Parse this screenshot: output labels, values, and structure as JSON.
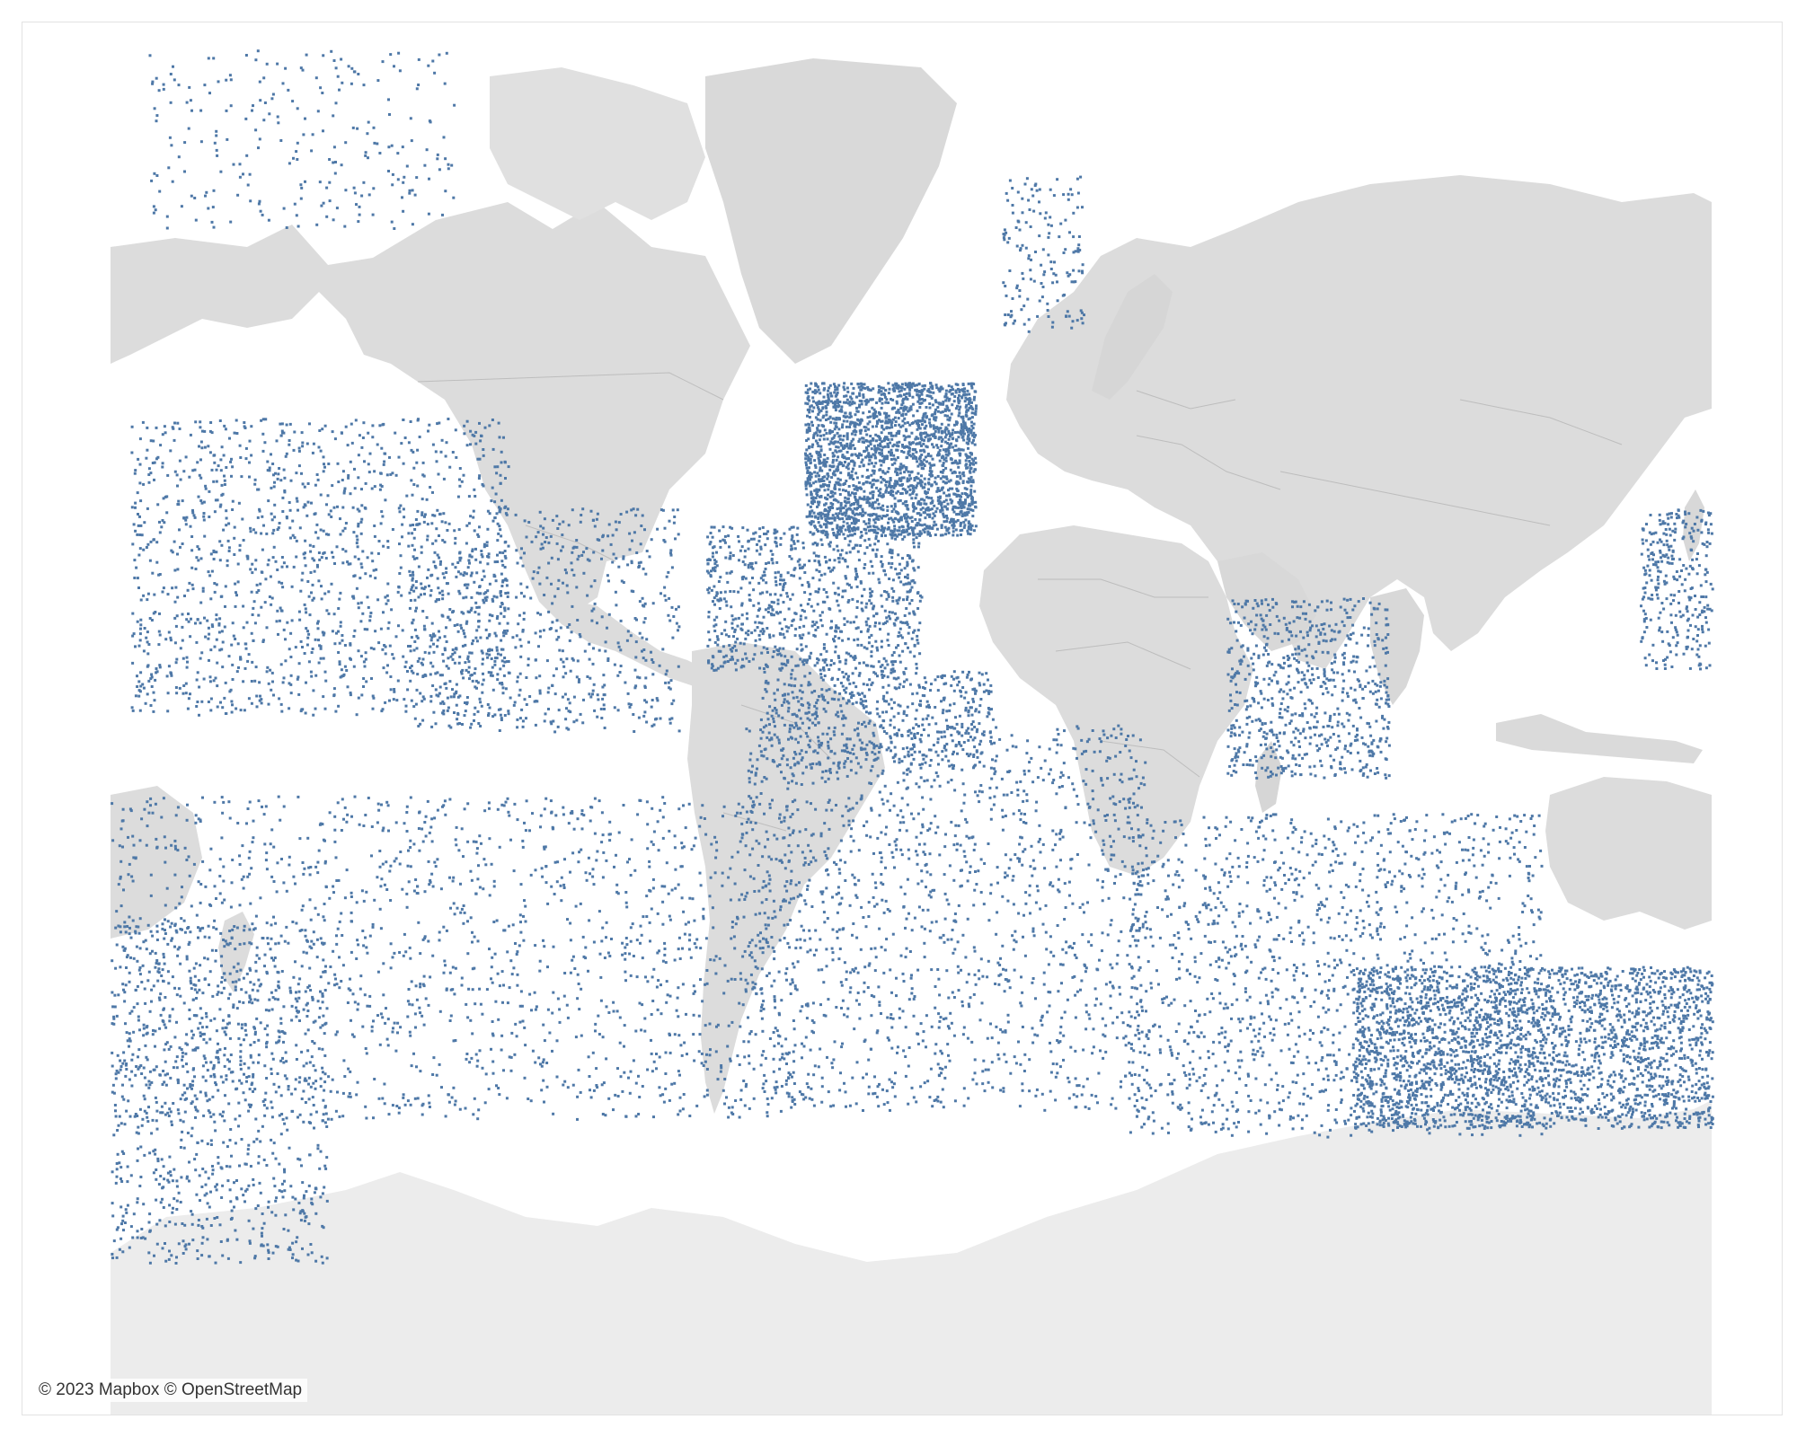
{
  "map": {
    "attribution": "© 2023 Mapbox © OpenStreetMap",
    "style": "light-gray basemap",
    "colors": {
      "background": "#ffffff",
      "ocean": "#ffffff",
      "land": "#dcdcdc",
      "land_light": "#e3e3e3",
      "antarctica": "#ececec",
      "borders": "#bdbdbd",
      "marker": "#4e78a7",
      "marker_halo": "#ffffff"
    },
    "marker_shape": "square-dot"
  }
}
